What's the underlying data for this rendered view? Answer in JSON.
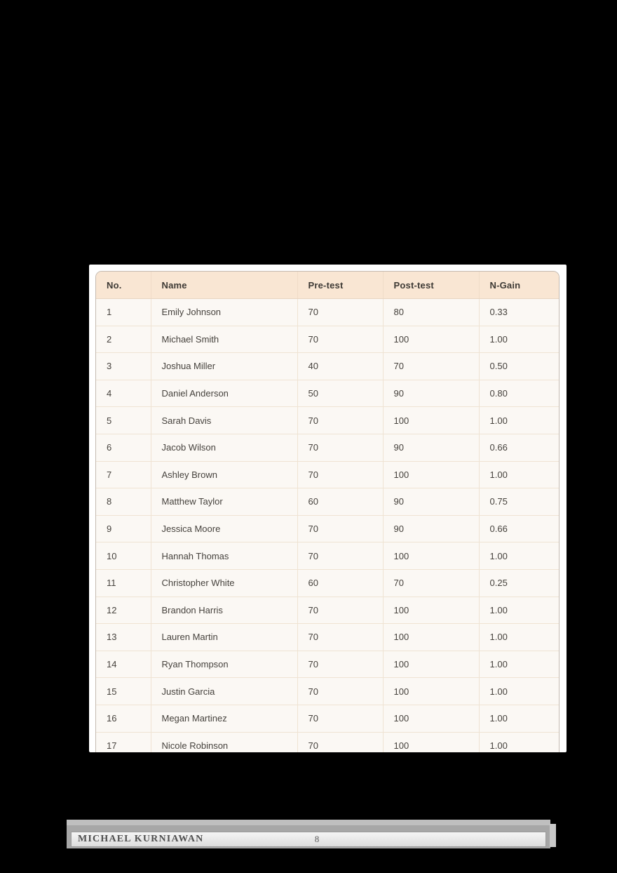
{
  "colors": {
    "canvas_bg": "#000000",
    "page_bg": "#ffffff",
    "header_bg": "#f9e6d3",
    "row_bg": "#fbf8f4",
    "cell_border": "#efe3d3",
    "outer_border": "#c4bab0",
    "footer_bar": "#a7a7a7"
  },
  "table": {
    "columns": [
      {
        "label": "No."
      },
      {
        "label": "Name"
      },
      {
        "label": "Pre-test"
      },
      {
        "label": "Post-test"
      },
      {
        "label": "N-Gain"
      }
    ],
    "rows": [
      {
        "no": "1",
        "name": "Emily Johnson",
        "pre": "70",
        "post": "80",
        "ngain": "0.33"
      },
      {
        "no": "2",
        "name": "Michael Smith",
        "pre": "70",
        "post": "100",
        "ngain": "1.00"
      },
      {
        "no": "3",
        "name": "Joshua Miller",
        "pre": "40",
        "post": "70",
        "ngain": "0.50"
      },
      {
        "no": "4",
        "name": "Daniel Anderson",
        "pre": "50",
        "post": "90",
        "ngain": "0.80"
      },
      {
        "no": "5",
        "name": "Sarah Davis",
        "pre": "70",
        "post": "100",
        "ngain": "1.00"
      },
      {
        "no": "6",
        "name": "Jacob Wilson",
        "pre": "70",
        "post": "90",
        "ngain": "0.66"
      },
      {
        "no": "7",
        "name": "Ashley Brown",
        "pre": "70",
        "post": "100",
        "ngain": "1.00"
      },
      {
        "no": "8",
        "name": "Matthew Taylor",
        "pre": "60",
        "post": "90",
        "ngain": "0.75"
      },
      {
        "no": "9",
        "name": "Jessica Moore",
        "pre": "70",
        "post": "90",
        "ngain": "0.66"
      },
      {
        "no": "10",
        "name": "Hannah Thomas",
        "pre": "70",
        "post": "100",
        "ngain": "1.00"
      },
      {
        "no": "11",
        "name": "Christopher White",
        "pre": "60",
        "post": "70",
        "ngain": "0.25"
      },
      {
        "no": "12",
        "name": "Brandon Harris",
        "pre": "70",
        "post": "100",
        "ngain": "1.00"
      },
      {
        "no": "13",
        "name": "Lauren Martin",
        "pre": "70",
        "post": "100",
        "ngain": "1.00"
      },
      {
        "no": "14",
        "name": "Ryan Thompson",
        "pre": "70",
        "post": "100",
        "ngain": "1.00"
      },
      {
        "no": "15",
        "name": "Justin Garcia",
        "pre": "70",
        "post": "100",
        "ngain": "1.00"
      },
      {
        "no": "16",
        "name": "Megan Martinez",
        "pre": "70",
        "post": "100",
        "ngain": "1.00"
      },
      {
        "no": "17",
        "name": "Nicole Robinson",
        "pre": "70",
        "post": "100",
        "ngain": "1.00"
      },
      {
        "no": "",
        "name": "",
        "pre": "",
        "post": "",
        "ngain": ""
      }
    ]
  },
  "footer": {
    "author": "MICHAEL KURNIAWAN",
    "page_number": "8"
  }
}
